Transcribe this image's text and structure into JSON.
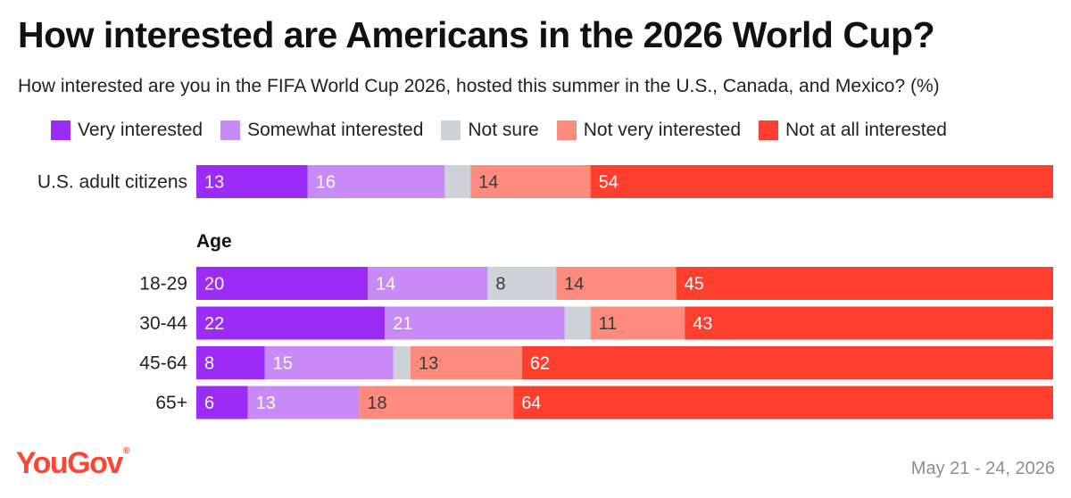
{
  "title": "How interested are Americans in the 2026 World Cup?",
  "subtitle": "How interested are you in the FIFA World Cup 2026, hosted this summer in the U.S., Canada, and Mexico? (%)",
  "brand": {
    "logo_text": "YouGov",
    "logo_mark": "®"
  },
  "footer": {
    "date": "May 21 - 24, 2026"
  },
  "colors": {
    "very_interested": "#9b2bf5",
    "somewhat_interested": "#c88af7",
    "not_sure": "#cdd2d9",
    "not_very_interested": "#fc8b7d",
    "not_at_all_interested": "#fe3f2d",
    "label_on_dark": "#ffffff",
    "label_on_light": "#3a3a3a",
    "brand": "#ff4632"
  },
  "chart_data": {
    "type": "bar",
    "orientation": "horizontal",
    "stacked": true,
    "unit": "%",
    "xlim": [
      0,
      100
    ],
    "grid": false,
    "legend_position": "top",
    "series": [
      {
        "name": "Very interested",
        "color_key": "very_interested",
        "text_key": "label_on_dark"
      },
      {
        "name": "Somewhat interested",
        "color_key": "somewhat_interested",
        "text_key": "label_on_dark"
      },
      {
        "name": "Not sure",
        "color_key": "not_sure",
        "text_key": "label_on_light"
      },
      {
        "name": "Not very interested",
        "color_key": "not_very_interested",
        "text_key": "label_on_light"
      },
      {
        "name": "Not at all interested",
        "color_key": "not_at_all_interested",
        "text_key": "label_on_dark"
      }
    ],
    "groups": [
      {
        "label": "",
        "rows": [
          {
            "category": "U.S. adult citizens",
            "values": [
              13,
              16,
              3,
              14,
              54
            ],
            "labels": [
              "13",
              "16",
              "",
              "14",
              "54"
            ]
          }
        ]
      },
      {
        "label": "Age",
        "rows": [
          {
            "category": "18-29",
            "values": [
              20,
              14,
              8,
              14,
              45
            ],
            "labels": [
              "20",
              "14",
              "8",
              "14",
              "45"
            ]
          },
          {
            "category": "30-44",
            "values": [
              22,
              21,
              3,
              11,
              43
            ],
            "labels": [
              "22",
              "21",
              "",
              "11",
              "43"
            ]
          },
          {
            "category": "45-64",
            "values": [
              8,
              15,
              2,
              13,
              62
            ],
            "labels": [
              "8",
              "15",
              "",
              "13",
              "62"
            ]
          },
          {
            "category": "65+",
            "values": [
              6,
              13,
              0,
              18,
              64
            ],
            "labels": [
              "6",
              "13",
              "",
              "18",
              "64"
            ]
          }
        ]
      }
    ]
  }
}
